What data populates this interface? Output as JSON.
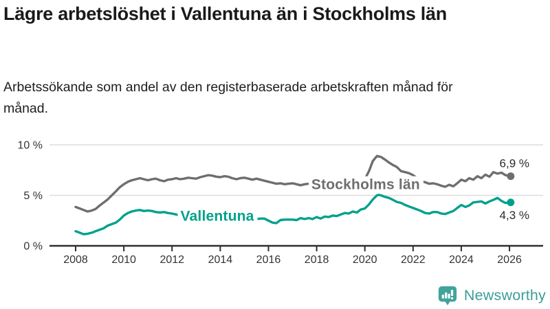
{
  "header": {
    "title": "Lägre arbetslöshet i Vallentuna än i Stockholms län",
    "subtitle": "Arbetssökande som andel av den registerbaserade arbetskraften månad för månad."
  },
  "footer": {
    "brand": "Newsworthy"
  },
  "colors": {
    "vallentuna": "#00a18c",
    "stockholm": "#6e6e6e",
    "gridline": "#dcdcdc",
    "axis": "#2e2e2e",
    "brand_teal": "#41a39c"
  },
  "chart_data": {
    "type": "line",
    "title": "Lägre arbetslöshet i Vallentuna än i Stockholms län",
    "subtitle": "Arbetssökande som andel av den registerbaserade arbetskraften månad för månad.",
    "unit": "%",
    "grid": "horizontal",
    "legend": "inline-labels",
    "xlim": [
      2006.9,
      2026.5
    ],
    "ylim": [
      0,
      10.7
    ],
    "x_ticks": [
      2008,
      2010,
      2012,
      2014,
      2016,
      2018,
      2020,
      2022,
      2024,
      2026
    ],
    "y_ticks": [
      {
        "value": 0,
        "label": "0 %"
      },
      {
        "value": 5,
        "label": "5 %"
      },
      {
        "value": 10,
        "label": "10 %"
      }
    ],
    "series": [
      {
        "name": "Stockholms län",
        "color": "#6e6e6e",
        "end_label": "6,9 %",
        "end_value": 6.9,
        "label_at": [
          2017.78,
          5.6
        ],
        "points": [
          [
            2008,
            3.85
          ],
          [
            2008.17,
            3.7
          ],
          [
            2008.33,
            3.55
          ],
          [
            2008.5,
            3.4
          ],
          [
            2008.67,
            3.5
          ],
          [
            2008.83,
            3.65
          ],
          [
            2009,
            4.0
          ],
          [
            2009.17,
            4.3
          ],
          [
            2009.33,
            4.6
          ],
          [
            2009.5,
            5.0
          ],
          [
            2009.67,
            5.4
          ],
          [
            2009.83,
            5.8
          ],
          [
            2010,
            6.1
          ],
          [
            2010.17,
            6.35
          ],
          [
            2010.33,
            6.5
          ],
          [
            2010.5,
            6.6
          ],
          [
            2010.67,
            6.7
          ],
          [
            2010.83,
            6.6
          ],
          [
            2011,
            6.5
          ],
          [
            2011.17,
            6.6
          ],
          [
            2011.33,
            6.65
          ],
          [
            2011.5,
            6.5
          ],
          [
            2011.67,
            6.4
          ],
          [
            2011.83,
            6.55
          ],
          [
            2012,
            6.6
          ],
          [
            2012.17,
            6.7
          ],
          [
            2012.33,
            6.6
          ],
          [
            2012.5,
            6.65
          ],
          [
            2012.67,
            6.75
          ],
          [
            2012.83,
            6.7
          ],
          [
            2013,
            6.65
          ],
          [
            2013.17,
            6.8
          ],
          [
            2013.33,
            6.9
          ],
          [
            2013.5,
            7.0
          ],
          [
            2013.67,
            6.95
          ],
          [
            2013.83,
            6.85
          ],
          [
            2014,
            6.8
          ],
          [
            2014.17,
            6.9
          ],
          [
            2014.33,
            6.85
          ],
          [
            2014.5,
            6.7
          ],
          [
            2014.67,
            6.6
          ],
          [
            2014.83,
            6.7
          ],
          [
            2015,
            6.75
          ],
          [
            2015.17,
            6.65
          ],
          [
            2015.33,
            6.55
          ],
          [
            2015.5,
            6.65
          ],
          [
            2015.67,
            6.55
          ],
          [
            2015.83,
            6.45
          ],
          [
            2016,
            6.35
          ],
          [
            2016.17,
            6.25
          ],
          [
            2016.33,
            6.15
          ],
          [
            2016.5,
            6.2
          ],
          [
            2016.67,
            6.1
          ],
          [
            2016.83,
            6.15
          ],
          [
            2017,
            6.2
          ],
          [
            2017.17,
            6.1
          ],
          [
            2017.33,
            6.0
          ],
          [
            2017.5,
            6.1
          ],
          [
            2017.67,
            6.15
          ],
          [
            2017.83,
            6.1
          ],
          [
            2018,
            6.15
          ],
          [
            2018.17,
            6.2
          ],
          [
            2018.33,
            6.15
          ],
          [
            2018.5,
            6.1
          ],
          [
            2018.67,
            6.15
          ],
          [
            2018.83,
            6.2
          ],
          [
            2019,
            6.15
          ],
          [
            2019.17,
            6.1
          ],
          [
            2019.33,
            6.15
          ],
          [
            2019.5,
            6.2
          ],
          [
            2019.67,
            6.25
          ],
          [
            2019.83,
            6.3
          ],
          [
            2020,
            6.6
          ],
          [
            2020.17,
            7.4
          ],
          [
            2020.33,
            8.4
          ],
          [
            2020.5,
            8.9
          ],
          [
            2020.67,
            8.8
          ],
          [
            2020.83,
            8.55
          ],
          [
            2021,
            8.25
          ],
          [
            2021.17,
            8.0
          ],
          [
            2021.33,
            7.8
          ],
          [
            2021.5,
            7.4
          ],
          [
            2021.67,
            7.3
          ],
          [
            2021.83,
            7.2
          ],
          [
            2022,
            7.0
          ],
          [
            2022.17,
            6.7
          ],
          [
            2022.33,
            6.4
          ],
          [
            2022.5,
            6.3
          ],
          [
            2022.67,
            6.15
          ],
          [
            2022.83,
            6.2
          ],
          [
            2023,
            6.1
          ],
          [
            2023.17,
            5.95
          ],
          [
            2023.33,
            5.85
          ],
          [
            2023.5,
            6.05
          ],
          [
            2023.67,
            5.9
          ],
          [
            2023.83,
            6.2
          ],
          [
            2024,
            6.55
          ],
          [
            2024.17,
            6.4
          ],
          [
            2024.33,
            6.7
          ],
          [
            2024.5,
            6.55
          ],
          [
            2024.67,
            6.9
          ],
          [
            2024.83,
            6.7
          ],
          [
            2025,
            7.05
          ],
          [
            2025.17,
            6.85
          ],
          [
            2025.33,
            7.3
          ],
          [
            2025.5,
            7.15
          ],
          [
            2025.67,
            7.25
          ],
          [
            2025.83,
            7.0
          ],
          [
            2026.05,
            6.9
          ]
        ]
      },
      {
        "name": "Vallentuna",
        "color": "#00a18c",
        "end_label": "4,3 %",
        "end_value": 4.3,
        "label_at": [
          2012.35,
          2.5
        ],
        "points": [
          [
            2008,
            1.45
          ],
          [
            2008.17,
            1.3
          ],
          [
            2008.33,
            1.15
          ],
          [
            2008.5,
            1.2
          ],
          [
            2008.67,
            1.3
          ],
          [
            2008.83,
            1.45
          ],
          [
            2009,
            1.6
          ],
          [
            2009.17,
            1.75
          ],
          [
            2009.33,
            2.0
          ],
          [
            2009.5,
            2.15
          ],
          [
            2009.67,
            2.3
          ],
          [
            2009.83,
            2.6
          ],
          [
            2010,
            3.0
          ],
          [
            2010.17,
            3.25
          ],
          [
            2010.33,
            3.4
          ],
          [
            2010.5,
            3.5
          ],
          [
            2010.67,
            3.55
          ],
          [
            2010.83,
            3.45
          ],
          [
            2011,
            3.5
          ],
          [
            2011.17,
            3.45
          ],
          [
            2011.33,
            3.35
          ],
          [
            2011.5,
            3.3
          ],
          [
            2011.67,
            3.35
          ],
          [
            2011.83,
            3.25
          ],
          [
            2012,
            3.2
          ],
          [
            2012.17,
            3.1
          ],
          [
            2012.33,
            3.05
          ],
          [
            2012.5,
            3.0
          ],
          [
            2012.67,
            2.95
          ],
          [
            2012.83,
            2.9
          ],
          [
            2013,
            2.9
          ],
          [
            2013.17,
            2.85
          ],
          [
            2013.33,
            2.9
          ],
          [
            2013.5,
            2.85
          ],
          [
            2013.67,
            2.8
          ],
          [
            2013.83,
            2.75
          ],
          [
            2014,
            2.8
          ],
          [
            2014.17,
            2.75
          ],
          [
            2014.33,
            2.7
          ],
          [
            2014.5,
            2.75
          ],
          [
            2014.67,
            2.7
          ],
          [
            2014.83,
            2.65
          ],
          [
            2015,
            2.7
          ],
          [
            2015.17,
            2.65
          ],
          [
            2015.33,
            2.7
          ],
          [
            2015.5,
            2.65
          ],
          [
            2015.67,
            2.7
          ],
          [
            2015.83,
            2.7
          ],
          [
            2016,
            2.5
          ],
          [
            2016.17,
            2.3
          ],
          [
            2016.33,
            2.25
          ],
          [
            2016.5,
            2.55
          ],
          [
            2016.67,
            2.6
          ],
          [
            2016.83,
            2.6
          ],
          [
            2017,
            2.6
          ],
          [
            2017.17,
            2.55
          ],
          [
            2017.33,
            2.75
          ],
          [
            2017.5,
            2.65
          ],
          [
            2017.67,
            2.75
          ],
          [
            2017.83,
            2.65
          ],
          [
            2018,
            2.85
          ],
          [
            2018.17,
            2.7
          ],
          [
            2018.33,
            2.9
          ],
          [
            2018.5,
            2.85
          ],
          [
            2018.67,
            3.0
          ],
          [
            2018.83,
            2.95
          ],
          [
            2019,
            3.1
          ],
          [
            2019.17,
            3.25
          ],
          [
            2019.33,
            3.2
          ],
          [
            2019.5,
            3.4
          ],
          [
            2019.67,
            3.3
          ],
          [
            2019.83,
            3.6
          ],
          [
            2020,
            3.7
          ],
          [
            2020.17,
            4.1
          ],
          [
            2020.33,
            4.6
          ],
          [
            2020.5,
            5.0
          ],
          [
            2020.58,
            5.05
          ],
          [
            2020.67,
            5.0
          ],
          [
            2020.83,
            4.85
          ],
          [
            2021,
            4.75
          ],
          [
            2021.17,
            4.55
          ],
          [
            2021.33,
            4.35
          ],
          [
            2021.5,
            4.25
          ],
          [
            2021.67,
            4.05
          ],
          [
            2021.83,
            3.9
          ],
          [
            2022,
            3.75
          ],
          [
            2022.17,
            3.6
          ],
          [
            2022.33,
            3.45
          ],
          [
            2022.5,
            3.25
          ],
          [
            2022.67,
            3.2
          ],
          [
            2022.83,
            3.35
          ],
          [
            2023,
            3.35
          ],
          [
            2023.17,
            3.2
          ],
          [
            2023.33,
            3.15
          ],
          [
            2023.5,
            3.3
          ],
          [
            2023.67,
            3.45
          ],
          [
            2023.83,
            3.75
          ],
          [
            2024,
            4.05
          ],
          [
            2024.17,
            3.85
          ],
          [
            2024.33,
            4.0
          ],
          [
            2024.5,
            4.3
          ],
          [
            2024.67,
            4.35
          ],
          [
            2024.83,
            4.4
          ],
          [
            2025,
            4.2
          ],
          [
            2025.17,
            4.4
          ],
          [
            2025.33,
            4.55
          ],
          [
            2025.5,
            4.75
          ],
          [
            2025.67,
            4.45
          ],
          [
            2025.83,
            4.25
          ],
          [
            2026.05,
            4.3
          ]
        ]
      }
    ]
  }
}
